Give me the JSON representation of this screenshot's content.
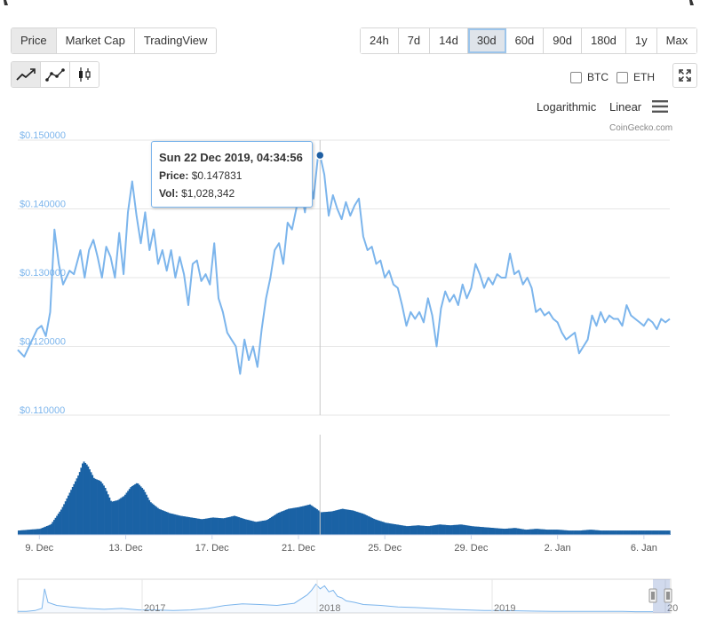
{
  "tabs": [
    "Price",
    "Market Cap",
    "TradingView"
  ],
  "active_tab": 0,
  "ranges": [
    "24h",
    "7d",
    "14d",
    "30d",
    "60d",
    "90d",
    "180d",
    "1y",
    "Max"
  ],
  "active_range": "30d",
  "chart_types": [
    {
      "name": "line-chart-icon",
      "active": true
    },
    {
      "name": "line-markers-chart-icon",
      "active": false
    },
    {
      "name": "candlestick-chart-icon",
      "active": false
    }
  ],
  "compare": [
    "BTC",
    "ETH"
  ],
  "scale_options": {
    "log": "Logarithmic",
    "linear": "Linear"
  },
  "credit": "CoinGecko.com",
  "tooltip": {
    "date": "Sun 22 Dec 2019, 04:34:56",
    "price_label": "Price:",
    "price_value": "$0.147831",
    "vol_label": "Vol:",
    "vol_value": "$1,028,342"
  },
  "chart_data": {
    "type": "line",
    "y_ticks": [
      "$0.150000",
      "$0.140000",
      "$0.130000",
      "$0.120000",
      "$0.110000"
    ],
    "ylim": [
      0.11,
      0.15
    ],
    "x_ticks": [
      "9. Dec",
      "13. Dec",
      "17. Dec",
      "21. Dec",
      "25. Dec",
      "29. Dec",
      "2. Jan",
      "6. Jan"
    ],
    "price_series": [
      [
        8.0,
        0.1195
      ],
      [
        8.3,
        0.1185
      ],
      [
        8.6,
        0.1205
      ],
      [
        8.9,
        0.1225
      ],
      [
        9.1,
        0.123
      ],
      [
        9.3,
        0.1215
      ],
      [
        9.5,
        0.125
      ],
      [
        9.7,
        0.137
      ],
      [
        9.9,
        0.132
      ],
      [
        10.1,
        0.129
      ],
      [
        10.4,
        0.131
      ],
      [
        10.6,
        0.1305
      ],
      [
        10.9,
        0.134
      ],
      [
        11.1,
        0.13
      ],
      [
        11.3,
        0.134
      ],
      [
        11.5,
        0.1355
      ],
      [
        11.7,
        0.133
      ],
      [
        11.9,
        0.13
      ],
      [
        12.1,
        0.1345
      ],
      [
        12.3,
        0.133
      ],
      [
        12.5,
        0.13
      ],
      [
        12.7,
        0.1365
      ],
      [
        12.9,
        0.1305
      ],
      [
        13.1,
        0.1395
      ],
      [
        13.3,
        0.144
      ],
      [
        13.5,
        0.139
      ],
      [
        13.7,
        0.135
      ],
      [
        13.9,
        0.1395
      ],
      [
        14.1,
        0.134
      ],
      [
        14.3,
        0.137
      ],
      [
        14.5,
        0.132
      ],
      [
        14.7,
        0.134
      ],
      [
        14.9,
        0.131
      ],
      [
        15.1,
        0.134
      ],
      [
        15.3,
        0.13
      ],
      [
        15.5,
        0.133
      ],
      [
        15.7,
        0.1305
      ],
      [
        15.9,
        0.126
      ],
      [
        16.1,
        0.132
      ],
      [
        16.3,
        0.1325
      ],
      [
        16.5,
        0.1295
      ],
      [
        16.7,
        0.1305
      ],
      [
        16.9,
        0.129
      ],
      [
        17.1,
        0.135
      ],
      [
        17.3,
        0.127
      ],
      [
        17.5,
        0.125
      ],
      [
        17.7,
        0.122
      ],
      [
        17.9,
        0.121
      ],
      [
        18.1,
        0.12
      ],
      [
        18.3,
        0.116
      ],
      [
        18.5,
        0.121
      ],
      [
        18.7,
        0.118
      ],
      [
        18.9,
        0.12
      ],
      [
        19.1,
        0.117
      ],
      [
        19.3,
        0.1225
      ],
      [
        19.5,
        0.127
      ],
      [
        19.7,
        0.13
      ],
      [
        19.9,
        0.134
      ],
      [
        20.1,
        0.135
      ],
      [
        20.3,
        0.132
      ],
      [
        20.5,
        0.138
      ],
      [
        20.7,
        0.137
      ],
      [
        20.9,
        0.14
      ],
      [
        21.1,
        0.143
      ],
      [
        21.3,
        0.1395
      ],
      [
        21.5,
        0.145
      ],
      [
        21.7,
        0.1415
      ],
      [
        21.9,
        0.1475
      ],
      [
        22.0,
        0.1478
      ],
      [
        22.2,
        0.145
      ],
      [
        22.4,
        0.139
      ],
      [
        22.6,
        0.142
      ],
      [
        22.8,
        0.14
      ],
      [
        23.0,
        0.1385
      ],
      [
        23.2,
        0.141
      ],
      [
        23.4,
        0.139
      ],
      [
        23.6,
        0.1405
      ],
      [
        23.8,
        0.1415
      ],
      [
        24.0,
        0.136
      ],
      [
        24.2,
        0.134
      ],
      [
        24.4,
        0.1345
      ],
      [
        24.6,
        0.132
      ],
      [
        24.8,
        0.1325
      ],
      [
        25.0,
        0.13
      ],
      [
        25.2,
        0.131
      ],
      [
        25.4,
        0.129
      ],
      [
        25.6,
        0.1285
      ],
      [
        25.8,
        0.126
      ],
      [
        26.0,
        0.123
      ],
      [
        26.2,
        0.125
      ],
      [
        26.4,
        0.124
      ],
      [
        26.6,
        0.125
      ],
      [
        26.8,
        0.1235
      ],
      [
        27.0,
        0.127
      ],
      [
        27.2,
        0.1245
      ],
      [
        27.4,
        0.12
      ],
      [
        27.6,
        0.1255
      ],
      [
        27.8,
        0.128
      ],
      [
        28.0,
        0.1265
      ],
      [
        28.2,
        0.1275
      ],
      [
        28.4,
        0.126
      ],
      [
        28.6,
        0.129
      ],
      [
        28.8,
        0.127
      ],
      [
        29.0,
        0.1285
      ],
      [
        29.2,
        0.132
      ],
      [
        29.4,
        0.1305
      ],
      [
        29.6,
        0.1285
      ],
      [
        29.8,
        0.13
      ],
      [
        30.0,
        0.129
      ],
      [
        30.2,
        0.1305
      ],
      [
        30.4,
        0.13
      ],
      [
        30.6,
        0.13
      ],
      [
        30.8,
        0.1335
      ],
      [
        31.0,
        0.1305
      ],
      [
        31.2,
        0.131
      ],
      [
        31.4,
        0.129
      ],
      [
        31.6,
        0.13
      ],
      [
        31.8,
        0.1285
      ],
      [
        32.0,
        0.125
      ],
      [
        32.2,
        0.1255
      ],
      [
        32.4,
        0.1245
      ],
      [
        32.6,
        0.125
      ],
      [
        32.8,
        0.124
      ],
      [
        33.0,
        0.1235
      ],
      [
        33.2,
        0.122
      ],
      [
        33.4,
        0.121
      ],
      [
        33.6,
        0.1215
      ],
      [
        33.8,
        0.122
      ],
      [
        34.0,
        0.119
      ],
      [
        34.2,
        0.12
      ],
      [
        34.4,
        0.121
      ],
      [
        34.6,
        0.1245
      ],
      [
        34.8,
        0.123
      ],
      [
        35.0,
        0.125
      ],
      [
        35.2,
        0.1235
      ],
      [
        35.4,
        0.1245
      ],
      [
        35.6,
        0.124
      ],
      [
        35.8,
        0.124
      ],
      [
        36.0,
        0.123
      ],
      [
        36.2,
        0.126
      ],
      [
        36.4,
        0.1245
      ],
      [
        36.6,
        0.124
      ],
      [
        36.8,
        0.1235
      ],
      [
        37.0,
        0.123
      ],
      [
        37.2,
        0.124
      ],
      [
        37.4,
        0.1235
      ],
      [
        37.6,
        0.1225
      ],
      [
        37.8,
        0.124
      ],
      [
        38.0,
        0.1235
      ],
      [
        38.2,
        0.124
      ]
    ],
    "volume_series": [
      [
        8.0,
        0.05
      ],
      [
        8.5,
        0.06
      ],
      [
        9.0,
        0.07
      ],
      [
        9.5,
        0.12
      ],
      [
        10.0,
        0.3
      ],
      [
        10.5,
        0.55
      ],
      [
        10.8,
        0.7
      ],
      [
        11.0,
        0.85
      ],
      [
        11.2,
        0.8
      ],
      [
        11.5,
        0.65
      ],
      [
        11.8,
        0.62
      ],
      [
        12.0,
        0.55
      ],
      [
        12.3,
        0.38
      ],
      [
        12.6,
        0.4
      ],
      [
        12.9,
        0.45
      ],
      [
        13.2,
        0.55
      ],
      [
        13.5,
        0.6
      ],
      [
        13.8,
        0.52
      ],
      [
        14.1,
        0.38
      ],
      [
        14.5,
        0.3
      ],
      [
        15.0,
        0.25
      ],
      [
        15.5,
        0.22
      ],
      [
        16.0,
        0.2
      ],
      [
        16.5,
        0.18
      ],
      [
        17.0,
        0.2
      ],
      [
        17.5,
        0.19
      ],
      [
        18.0,
        0.22
      ],
      [
        18.5,
        0.18
      ],
      [
        19.0,
        0.15
      ],
      [
        19.5,
        0.17
      ],
      [
        20.0,
        0.25
      ],
      [
        20.5,
        0.3
      ],
      [
        21.0,
        0.32
      ],
      [
        21.5,
        0.35
      ],
      [
        21.8,
        0.3
      ],
      [
        22.0,
        0.26
      ],
      [
        22.5,
        0.27
      ],
      [
        23.0,
        0.3
      ],
      [
        23.5,
        0.28
      ],
      [
        24.0,
        0.24
      ],
      [
        24.5,
        0.18
      ],
      [
        25.0,
        0.14
      ],
      [
        25.5,
        0.12
      ],
      [
        26.0,
        0.1
      ],
      [
        26.5,
        0.11
      ],
      [
        27.0,
        0.1
      ],
      [
        27.5,
        0.12
      ],
      [
        28.0,
        0.11
      ],
      [
        28.5,
        0.12
      ],
      [
        29.0,
        0.1
      ],
      [
        29.5,
        0.09
      ],
      [
        30.0,
        0.08
      ],
      [
        30.5,
        0.07
      ],
      [
        31.0,
        0.08
      ],
      [
        31.5,
        0.06
      ],
      [
        32.0,
        0.07
      ],
      [
        32.5,
        0.06
      ],
      [
        33.0,
        0.06
      ],
      [
        33.5,
        0.05
      ],
      [
        34.0,
        0.05
      ],
      [
        34.5,
        0.06
      ],
      [
        35.0,
        0.05
      ],
      [
        35.5,
        0.05
      ],
      [
        36.0,
        0.05
      ],
      [
        36.5,
        0.05
      ],
      [
        37.0,
        0.05
      ],
      [
        37.5,
        0.05
      ],
      [
        38.0,
        0.05
      ],
      [
        38.2,
        0.05
      ]
    ],
    "navigator": {
      "x_ticks": [
        "2017",
        "2018",
        "2019",
        "20"
      ],
      "series": [
        [
          0,
          0.05
        ],
        [
          10,
          0.05
        ],
        [
          20,
          0.08
        ],
        [
          28,
          0.15
        ],
        [
          31,
          0.8
        ],
        [
          35,
          0.35
        ],
        [
          45,
          0.25
        ],
        [
          60,
          0.2
        ],
        [
          80,
          0.15
        ],
        [
          100,
          0.12
        ],
        [
          120,
          0.15
        ],
        [
          140,
          0.1
        ],
        [
          160,
          0.1
        ],
        [
          180,
          0.08
        ],
        [
          200,
          0.1
        ],
        [
          220,
          0.15
        ],
        [
          240,
          0.25
        ],
        [
          260,
          0.3
        ],
        [
          280,
          0.28
        ],
        [
          300,
          0.25
        ],
        [
          320,
          0.32
        ],
        [
          335,
          0.6
        ],
        [
          340,
          0.75
        ],
        [
          345,
          0.95
        ],
        [
          350,
          0.8
        ],
        [
          355,
          0.9
        ],
        [
          360,
          0.7
        ],
        [
          365,
          0.75
        ],
        [
          370,
          0.55
        ],
        [
          375,
          0.5
        ],
        [
          380,
          0.4
        ],
        [
          390,
          0.35
        ],
        [
          400,
          0.28
        ],
        [
          420,
          0.25
        ],
        [
          440,
          0.2
        ],
        [
          460,
          0.18
        ],
        [
          480,
          0.15
        ],
        [
          500,
          0.12
        ],
        [
          520,
          0.1
        ],
        [
          540,
          0.08
        ],
        [
          560,
          0.08
        ],
        [
          580,
          0.07
        ],
        [
          600,
          0.06
        ],
        [
          620,
          0.05
        ],
        [
          640,
          0.05
        ],
        [
          660,
          0.05
        ],
        [
          680,
          0.05
        ],
        [
          700,
          0.05
        ],
        [
          715,
          0.04
        ],
        [
          735,
          0.04
        ]
      ]
    }
  }
}
